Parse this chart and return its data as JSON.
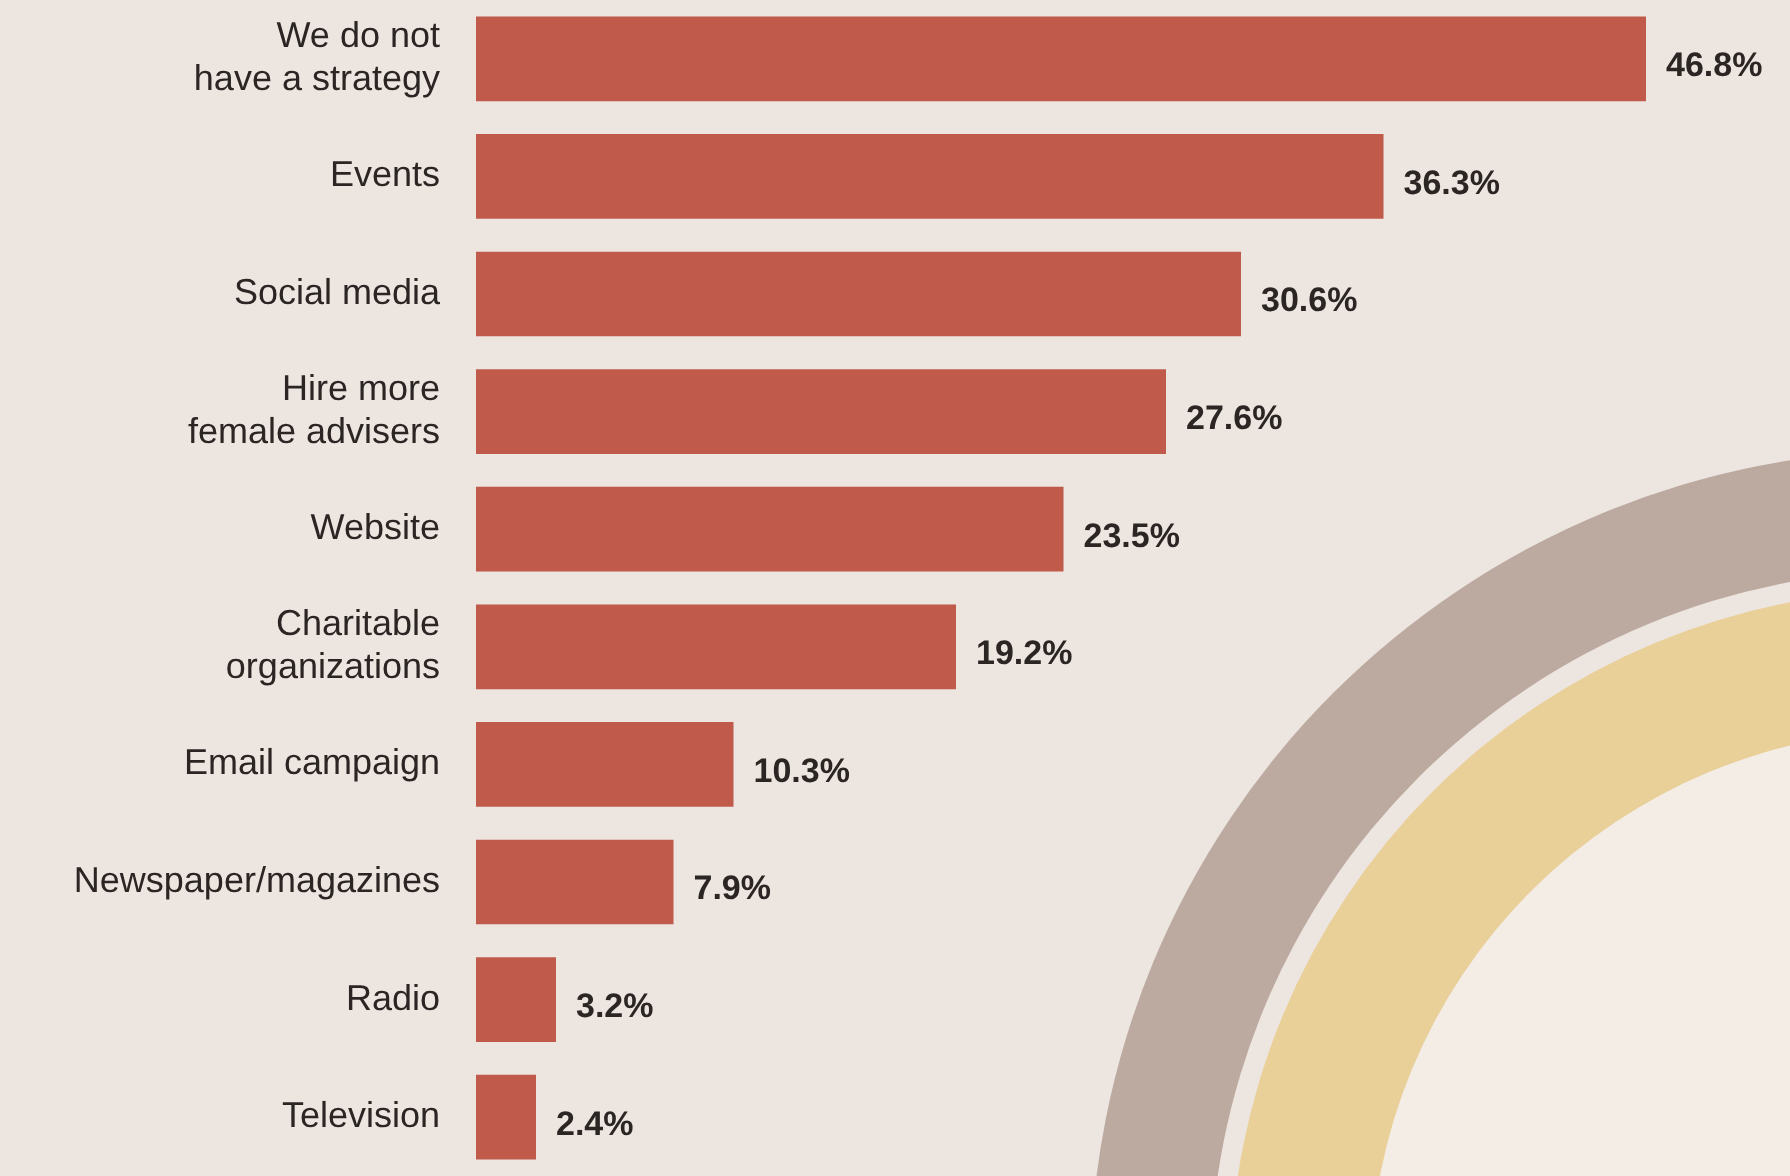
{
  "chart_data": {
    "type": "bar",
    "orientation": "horizontal",
    "categories": [
      "We do not\nhave a strategy",
      "Events",
      "Social media",
      "Hire more\nfemale advisers",
      "Website",
      "Charitable\norganizations",
      "Email campaign",
      "Newspaper/magazines",
      "Radio",
      "Television"
    ],
    "values": [
      46.8,
      36.3,
      30.6,
      27.6,
      23.5,
      19.2,
      10.3,
      7.9,
      3.2,
      2.4
    ],
    "value_labels": [
      "46.8%",
      "36.3%",
      "30.6%",
      "27.6%",
      "23.5%",
      "19.2%",
      "10.3%",
      "7.9%",
      "3.2%",
      "2.4%"
    ],
    "color": "#c05a4b",
    "legend": false,
    "tick_labels": "y"
  }
}
